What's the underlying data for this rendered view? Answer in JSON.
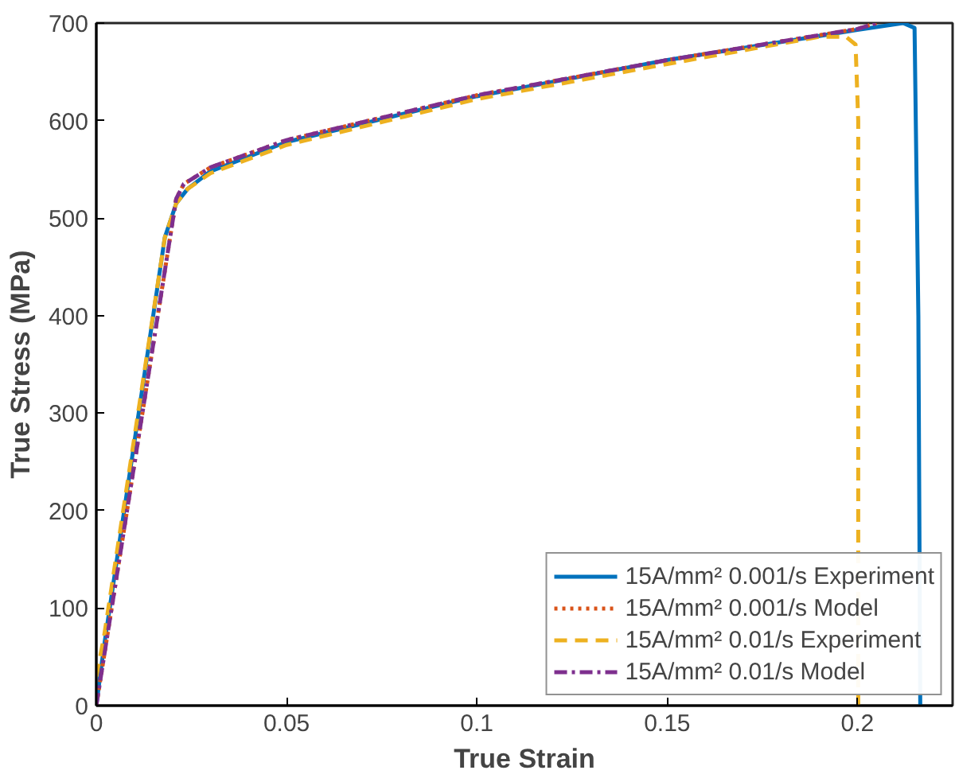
{
  "chart_data": {
    "type": "line",
    "xlabel": "True Strain",
    "ylabel": "True Stress (MPa)",
    "xlim": [
      0,
      0.225
    ],
    "ylim": [
      0,
      700
    ],
    "xticks": [
      0,
      0.05,
      0.1,
      0.15,
      0.2
    ],
    "yticks": [
      0,
      100,
      200,
      300,
      400,
      500,
      600,
      700
    ],
    "grid": false,
    "legend": "bottom right",
    "series": [
      {
        "name": "15A/mm² 0.001/s Experiment",
        "color": "#0072bd",
        "line_style": "solid",
        "x": [
          0,
          0.002,
          0.018,
          0.021,
          0.024,
          0.03,
          0.05,
          0.1,
          0.15,
          0.2,
          0.212,
          0.215,
          0.216,
          0.2165
        ],
        "values": [
          0,
          60,
          480,
          515,
          530,
          548,
          578,
          625,
          662,
          693,
          700,
          695,
          400,
          0
        ]
      },
      {
        "name": "15A/mm² 0.001/s Model",
        "color": "#d95319",
        "line_style": "dotted",
        "x": [
          0,
          0.021,
          0.023,
          0.03,
          0.05,
          0.1,
          0.15,
          0.2,
          0.205
        ],
        "values": [
          0,
          520,
          535,
          552,
          580,
          626,
          662,
          694,
          700
        ]
      },
      {
        "name": "15A/mm² 0.01/s Experiment",
        "color": "#edb120",
        "line_style": "dashed",
        "x": [
          0,
          0.002,
          0.018,
          0.021,
          0.024,
          0.03,
          0.05,
          0.1,
          0.15,
          0.19,
          0.197,
          0.1995,
          0.2002,
          0.2002
        ],
        "values": [
          30,
          70,
          480,
          515,
          530,
          546,
          575,
          622,
          658,
          686,
          686,
          678,
          600,
          0
        ]
      },
      {
        "name": "15A/mm² 0.01/s Model",
        "color": "#7e2f8e",
        "line_style": "dashdot",
        "x": [
          0,
          0.021,
          0.023,
          0.03,
          0.05,
          0.1,
          0.15,
          0.2,
          0.205
        ],
        "values": [
          0,
          520,
          535,
          552,
          580,
          626,
          662,
          694,
          700
        ]
      }
    ]
  }
}
